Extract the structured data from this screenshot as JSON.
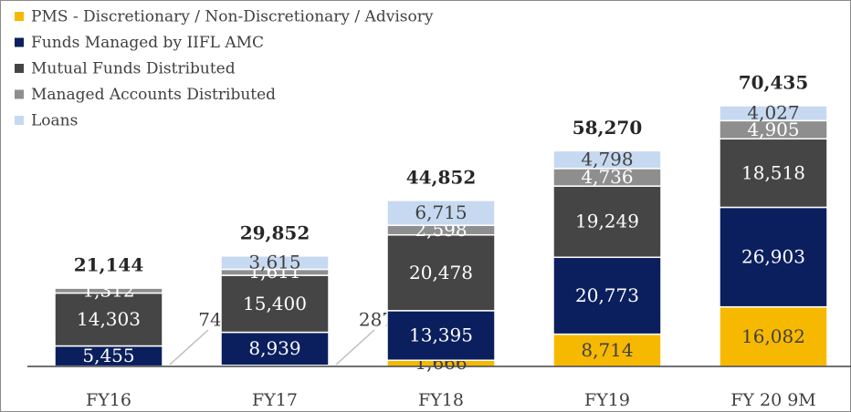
{
  "chart_data": {
    "type": "stacked_bar",
    "categories": [
      "FY16",
      "FY17",
      "FY18",
      "FY19",
      "FY 20 9M"
    ],
    "series": [
      {
        "name": "PMS - Discretionary / Non-Discretionary / Advisory",
        "color": "#f7b900",
        "values": [
          74,
          287,
          1666,
          8714,
          16082
        ],
        "value_labels": [
          "74",
          "287",
          "1,666",
          "8,714",
          "16,082"
        ]
      },
      {
        "name": "Funds Managed by IIFL AMC",
        "color": "#0b1f5e",
        "values": [
          5455,
          8939,
          13395,
          20773,
          26903
        ],
        "value_labels": [
          "5,455",
          "8,939",
          "13,395",
          "20,773",
          "26,903"
        ]
      },
      {
        "name": "Mutual Funds Distributed",
        "color": "#454545",
        "values": [
          14303,
          15400,
          20478,
          19249,
          18518
        ],
        "value_labels": [
          "14,303",
          "15,400",
          "20,478",
          "19,249",
          "18,518"
        ]
      },
      {
        "name": "Managed Accounts Distributed",
        "color": "#8e8e8e",
        "values": [
          1312,
          1611,
          2598,
          4736,
          4905
        ],
        "value_labels": [
          "1,312",
          "1,611",
          "2,598",
          "4,736",
          "4,905"
        ]
      },
      {
        "name": "Loans",
        "color": "#c6d9f1",
        "values": [
          null,
          3615,
          6715,
          4798,
          4027
        ],
        "value_labels": [
          null,
          "3,615",
          "6,715",
          "4,798",
          "4,027"
        ]
      }
    ],
    "totals": {
      "values": [
        21144,
        29852,
        44852,
        58270,
        70435
      ],
      "value_labels": [
        "21,144",
        "29,852",
        "44,852",
        "58,270",
        "70,435"
      ]
    }
  }
}
